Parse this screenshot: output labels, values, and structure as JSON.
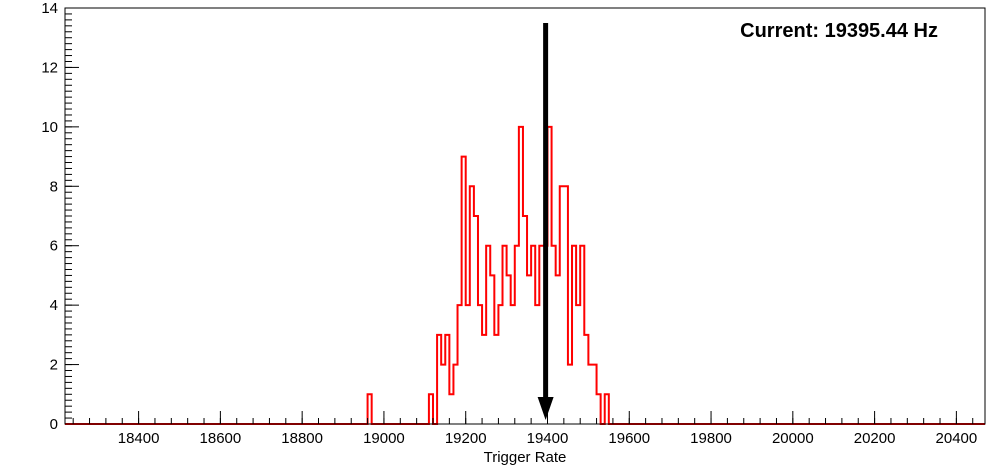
{
  "chart_data": {
    "type": "histogram",
    "title": "",
    "xlabel": "Trigger Rate",
    "ylabel": "",
    "annotation": "Current: 19395.44 Hz",
    "current_value_hz": 19395.44,
    "arrow_x": 19395.44,
    "xlim": [
      18220,
      20470
    ],
    "ylim": [
      0,
      14
    ],
    "x_major_ticks": [
      18400,
      18600,
      18800,
      19000,
      19200,
      19400,
      19600,
      19800,
      20000,
      20200,
      20400
    ],
    "x_minor_step": 40,
    "y_major_ticks": [
      0,
      2,
      4,
      6,
      8,
      10,
      12,
      14
    ],
    "y_minor_step": 0.2,
    "bin_width": 10,
    "first_bin_edge": 18960,
    "counts": [
      1,
      0,
      0,
      0,
      0,
      0,
      0,
      0,
      0,
      0,
      0,
      0,
      0,
      0,
      0,
      1,
      0,
      3,
      2,
      3,
      1,
      2,
      4,
      9,
      4,
      8,
      7,
      4,
      3,
      6,
      5,
      3,
      4,
      6,
      5,
      4,
      6,
      10,
      7,
      5,
      6,
      4,
      6,
      6,
      10,
      6,
      5,
      8,
      8,
      2,
      6,
      4,
      6,
      3,
      2,
      2,
      1,
      0,
      1,
      0
    ],
    "grid": false,
    "legend_position": "none",
    "colors": {
      "series": "#ff0000",
      "arrow": "#000000",
      "frame": "#000000",
      "background": "#ffffff"
    }
  }
}
